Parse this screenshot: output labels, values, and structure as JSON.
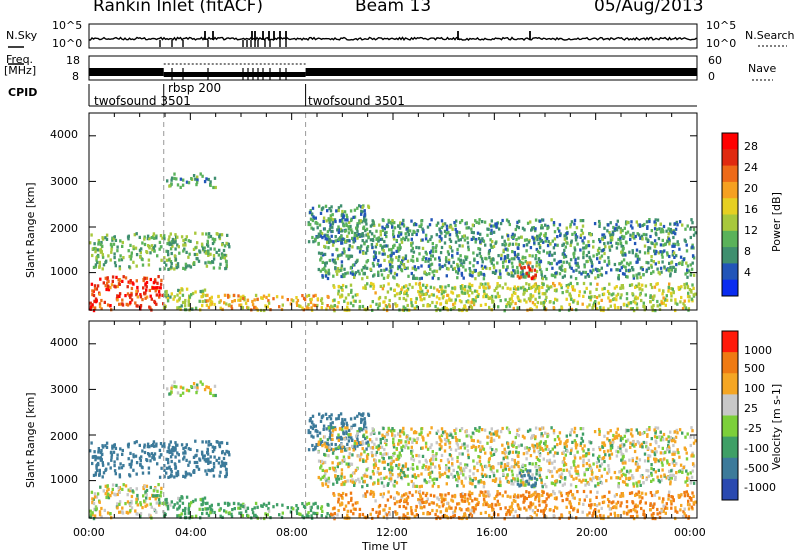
{
  "header": {
    "station": "Rankin Inlet (fitACF)",
    "beam": "Beam 13",
    "date": "05/Aug/2013"
  },
  "strips": {
    "nsky_label": "N.Sky",
    "nsearch_label": "N.Search",
    "nsky_ticks": [
      "10^5",
      "10^0"
    ],
    "nsearch_ticks": [
      "10^5",
      "10^0"
    ],
    "freq_label_1": "Freq.",
    "freq_label_2": "[MHz]",
    "freq_ticks": [
      "18",
      "8"
    ],
    "nave_label": "Nave",
    "nave_ticks": [
      "60",
      "0"
    ],
    "cpid_label": "CPID",
    "cpid_segments": [
      "twofsound 3501",
      "rbsp 200",
      "twofsound 3501"
    ]
  },
  "power_panel": {
    "ylabel": "Slant Range [km]",
    "yticks": [
      "4000",
      "3000",
      "2000",
      "1000"
    ],
    "colorbar_label": "Power [dB]",
    "colorbar_ticks": [
      "28",
      "24",
      "20",
      "16",
      "12",
      "8",
      "4"
    ],
    "colors": [
      "#0a2cf0",
      "#2255b8",
      "#3f8f6f",
      "#5ab25a",
      "#a8c83c",
      "#e6d022",
      "#f5a020",
      "#ee6a18",
      "#e02a10",
      "#ff0000"
    ]
  },
  "velocity_panel": {
    "ylabel": "Slant Range [km]",
    "yticks": [
      "4000",
      "3000",
      "2000",
      "1000"
    ],
    "colorbar_label": "Velocity [m s-1]",
    "colorbar_ticks": [
      "1000",
      "500",
      "100",
      "25",
      "-25",
      "-100",
      "-500",
      "-1000"
    ],
    "colors": [
      "#2a49b0",
      "#3c7a9a",
      "#3f9f66",
      "#7ccf3a",
      "#c8c8c8",
      "#f5a623",
      "#ef7a12",
      "#ff1a0a"
    ]
  },
  "xaxis": {
    "ticks": [
      "00:00",
      "04:00",
      "08:00",
      "12:00",
      "16:00",
      "20:00",
      "00:00"
    ],
    "label": "Time UT"
  },
  "chart_data": {
    "type": "heatmap",
    "title": "Rankin Inlet (fitACF)",
    "subtitle": "Beam 13",
    "date": "05/Aug/2013",
    "xlabel": "Time UT",
    "ylabel": "Slant Range [km]",
    "x_range_hours": [
      0,
      24
    ],
    "y_range_km": [
      180,
      4500
    ],
    "power_scale_db": [
      0,
      30
    ],
    "velocity_scale_ms": [
      -1000,
      1000
    ],
    "cpid_changes_hours": [
      2.95,
      8.55
    ],
    "scatter_regions": [
      {
        "t0": 0.0,
        "t1": 2.9,
        "r0": 200,
        "r1": 950,
        "power": 26,
        "velocity": 0
      },
      {
        "t0": 2.9,
        "t1": 4.6,
        "r0": 200,
        "r1": 700,
        "power": 12,
        "velocity": 100
      },
      {
        "t0": 4.6,
        "t1": 9.5,
        "r0": 200,
        "r1": 550,
        "power": 18,
        "velocity": 100
      },
      {
        "t0": 0.0,
        "t1": 5.5,
        "r0": 1100,
        "r1": 1900,
        "power": 10,
        "velocity": 500
      },
      {
        "t0": 3.0,
        "t1": 5.0,
        "r0": 2900,
        "r1": 3200,
        "power": 8,
        "velocity": 0
      },
      {
        "t0": 8.6,
        "t1": 11.0,
        "r0": 1700,
        "r1": 2500,
        "power": 8,
        "velocity": 500
      },
      {
        "t0": 9.0,
        "t1": 23.9,
        "r0": 900,
        "r1": 2200,
        "power": 8,
        "velocity": 0
      },
      {
        "t0": 9.5,
        "t1": 23.9,
        "r0": 200,
        "r1": 800,
        "power": 14,
        "velocity": -100
      },
      {
        "t0": 16.8,
        "t1": 17.6,
        "r0": 900,
        "r1": 1300,
        "power": 24,
        "velocity": 500
      }
    ]
  }
}
